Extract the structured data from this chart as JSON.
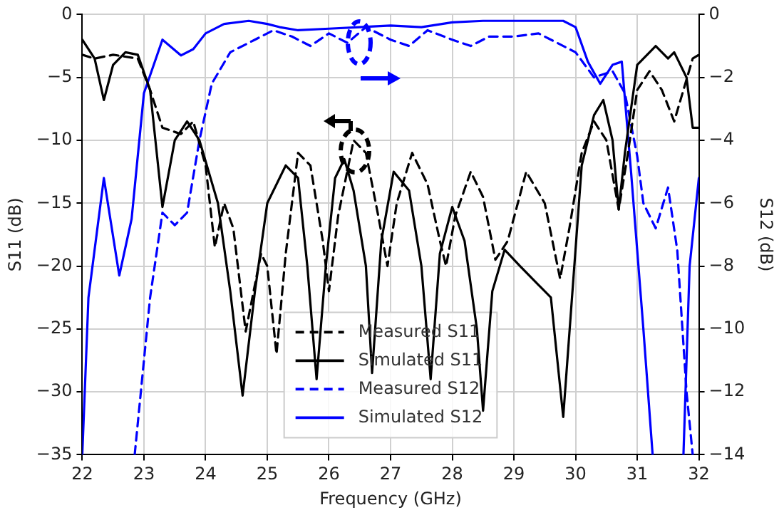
{
  "chart_data": {
    "type": "line",
    "xlabel": "Frequency (GHz)",
    "ylabel": "S11 (dB)",
    "y2label": "S12 (dB)",
    "xlim": [
      22,
      32
    ],
    "xticks": [
      22,
      23,
      24,
      25,
      26,
      27,
      28,
      29,
      30,
      31,
      32
    ],
    "ylim": [
      -35,
      0
    ],
    "yticks": [
      -35,
      -30,
      -25,
      -20,
      -15,
      -10,
      -5,
      0
    ],
    "y2lim": [
      -14,
      0
    ],
    "y2ticks": [
      -14,
      -12,
      -10,
      -8,
      -6,
      -4,
      -2,
      0
    ],
    "grid": true,
    "legend": "bottom",
    "marker": "none",
    "series": [
      {
        "name": "Measured S11",
        "color": "#000000",
        "line_style": "dashed",
        "x": [
          22,
          22.2,
          22.5,
          22.9,
          23.1,
          23.3,
          23.6,
          23.8,
          24.0,
          24.15,
          24.3,
          24.45,
          24.65,
          24.9,
          25.0,
          25.15,
          25.3,
          25.5,
          25.7,
          25.9,
          26.0,
          26.15,
          26.4,
          26.6,
          26.8,
          26.95,
          27.1,
          27.35,
          27.6,
          27.8,
          27.9,
          28.05,
          28.3,
          28.5,
          28.7,
          28.9,
          29.2,
          29.5,
          29.75,
          29.9,
          30.1,
          30.3,
          30.5,
          30.7,
          30.85,
          31.0,
          31.2,
          31.4,
          31.6,
          31.75,
          31.9,
          32
        ],
        "values": [
          -3.2,
          -3.5,
          -3.2,
          -3.5,
          -6,
          -9,
          -9.5,
          -8.5,
          -12,
          -18.5,
          -15,
          -17,
          -25.2,
          -19,
          -20,
          -27,
          -19,
          -11,
          -12,
          -18,
          -22,
          -16,
          -10,
          -11,
          -16,
          -20,
          -15,
          -11,
          -13.5,
          -18,
          -20,
          -16,
          -12.5,
          -14.5,
          -19.5,
          -18,
          -12.5,
          -15,
          -21,
          -17,
          -11,
          -8.5,
          -10,
          -15.5,
          -11,
          -6,
          -4.5,
          -6,
          -8.5,
          -6,
          -3.5,
          -3.2
        ]
      },
      {
        "name": "Simulated S11",
        "color": "#000000",
        "line_style": "solid",
        "x": [
          22,
          22.2,
          22.35,
          22.5,
          22.7,
          22.9,
          23.1,
          23.3,
          23.5,
          23.7,
          23.9,
          24.2,
          24.4,
          24.6,
          24.8,
          25.0,
          25.3,
          25.5,
          25.65,
          25.8,
          25.95,
          26.1,
          26.25,
          26.4,
          26.6,
          26.7,
          26.85,
          27.05,
          27.3,
          27.5,
          27.65,
          27.8,
          28.0,
          28.2,
          28.4,
          28.5,
          28.65,
          28.85,
          29.1,
          29.4,
          29.6,
          29.8,
          29.95,
          30.1,
          30.3,
          30.45,
          30.6,
          30.7,
          30.8,
          31.0,
          31.3,
          31.5,
          31.6,
          31.8,
          31.9,
          32
        ],
        "values": [
          -2,
          -3.5,
          -6.8,
          -4,
          -3,
          -3.2,
          -6,
          -15.3,
          -10,
          -8.5,
          -10,
          -15,
          -22,
          -30.3,
          -22,
          -15,
          -12,
          -13,
          -20,
          -29,
          -20,
          -13,
          -11.5,
          -14,
          -20,
          -28.5,
          -18,
          -12.5,
          -14,
          -20,
          -29,
          -19,
          -15.3,
          -18,
          -25,
          -31.5,
          -22,
          -18.7,
          -20,
          -21.5,
          -22.5,
          -32,
          -22,
          -12,
          -8,
          -6.8,
          -10,
          -15.5,
          -11,
          -4,
          -2.5,
          -3.5,
          -3,
          -5,
          -9,
          -9
        ]
      },
      {
        "name": "Measured S12",
        "color": "#0000ff",
        "line_style": "dashed",
        "axis": "y2",
        "x": [
          22.85,
          23.1,
          23.3,
          23.5,
          23.7,
          23.9,
          24.1,
          24.4,
          24.8,
          25.1,
          25.4,
          25.7,
          26,
          26.3,
          26.6,
          27,
          27.3,
          27.6,
          28,
          28.3,
          28.6,
          29,
          29.4,
          29.7,
          30.0,
          30.3,
          30.6,
          30.8,
          31.0,
          31.1,
          31.3,
          31.5,
          31.65,
          31.8,
          31.9
        ],
        "values": [
          -14,
          -9,
          -6.3,
          -6.7,
          -6.3,
          -4,
          -2.2,
          -1.2,
          -0.8,
          -0.5,
          -0.7,
          -1.0,
          -0.6,
          -0.9,
          -0.4,
          -0.8,
          -1,
          -0.5,
          -0.8,
          -1,
          -0.7,
          -0.7,
          -0.6,
          -0.9,
          -1.2,
          -2,
          -1.8,
          -2.5,
          -4.5,
          -6,
          -6.8,
          -5.5,
          -7.5,
          -12,
          -14
        ]
      },
      {
        "name": "Simulated S12",
        "color": "#0000ff",
        "line_style": "solid",
        "axis": "y2",
        "x": [
          22,
          22.1,
          22.35,
          22.6,
          22.8,
          23.0,
          23.3,
          23.6,
          23.8,
          24.0,
          24.3,
          24.7,
          25,
          25.2,
          25.5,
          26,
          26.5,
          27,
          27.5,
          28,
          28.5,
          29,
          29.5,
          29.8,
          30.0,
          30.2,
          30.4,
          30.6,
          30.75,
          30.9,
          31.1,
          31.25,
          31.5,
          31.75,
          31.85,
          32
        ],
        "values": [
          -14,
          -9,
          -5.2,
          -8.3,
          -6.5,
          -2.5,
          -0.8,
          -1.3,
          -1.1,
          -0.6,
          -0.3,
          -0.2,
          -0.3,
          -0.4,
          -0.5,
          -0.45,
          -0.4,
          -0.35,
          -0.4,
          -0.25,
          -0.2,
          -0.2,
          -0.2,
          -0.2,
          -0.4,
          -1.5,
          -2.2,
          -1.6,
          -1.5,
          -5,
          -10,
          -14,
          null,
          -14,
          -8,
          -5.2
        ]
      }
    ]
  }
}
